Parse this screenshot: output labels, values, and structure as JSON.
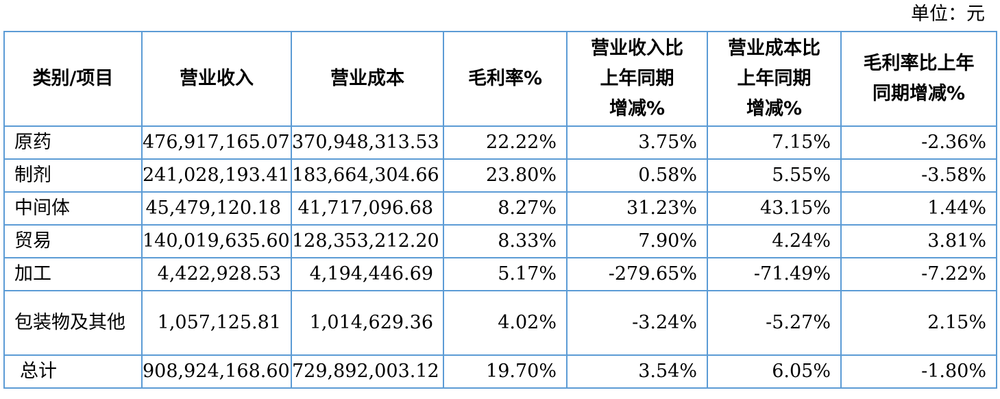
{
  "unit_label": "单位：元",
  "headers": {
    "category": "类别/项目",
    "revenue": "营业收入",
    "cost": "营业成本",
    "margin": "毛利率%",
    "revenue_yoy": [
      "营业收入比",
      "上年同期",
      "增减%"
    ],
    "cost_yoy": [
      "营业成本比",
      "上年同期",
      "增减%"
    ],
    "margin_yoy": [
      "毛利率比上年",
      "同期增减%"
    ]
  },
  "rows": [
    {
      "category": "原药",
      "revenue": "476,917,165.07",
      "cost": "370,948,313.53",
      "margin": "22.22%",
      "revenue_yoy": "3.75%",
      "cost_yoy": "7.15%",
      "margin_yoy": "-2.36%"
    },
    {
      "category": "制剂",
      "revenue": "241,028,193.41",
      "cost": "183,664,304.66",
      "margin": "23.80%",
      "revenue_yoy": "0.58%",
      "cost_yoy": "5.55%",
      "margin_yoy": "-3.58%"
    },
    {
      "category": "中间体",
      "revenue": "45,479,120.18",
      "cost": "41,717,096.68",
      "margin": "8.27%",
      "revenue_yoy": "31.23%",
      "cost_yoy": "43.15%",
      "margin_yoy": "1.44%"
    },
    {
      "category": "贸易",
      "revenue": "140,019,635.60",
      "cost": "128,353,212.20",
      "margin": "8.33%",
      "revenue_yoy": "7.90%",
      "cost_yoy": "4.24%",
      "margin_yoy": "3.81%"
    },
    {
      "category": "加工",
      "revenue": "4,422,928.53",
      "cost": "4,194,446.69",
      "margin": "5.17%",
      "revenue_yoy": "-279.65%",
      "cost_yoy": "-71.49%",
      "margin_yoy": "-7.22%"
    },
    {
      "category": "包装物及其他",
      "revenue": "1,057,125.81",
      "cost": "1,014,629.36",
      "margin": "4.02%",
      "revenue_yoy": "-3.24%",
      "cost_yoy": "-5.27%",
      "margin_yoy": "2.15%"
    },
    {
      "category": "总计",
      "revenue": "908,924,168.60",
      "cost": "729,892,003.12",
      "margin": "19.70%",
      "revenue_yoy": "3.54%",
      "cost_yoy": "6.05%",
      "margin_yoy": "-1.80%"
    }
  ]
}
